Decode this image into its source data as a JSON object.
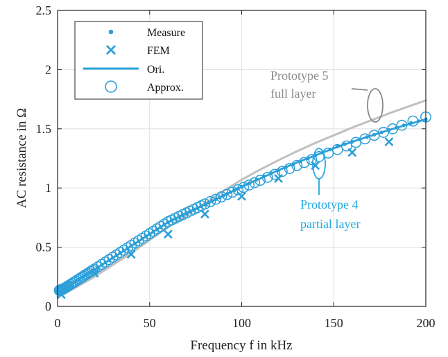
{
  "chart_data": {
    "type": "line",
    "xlabel": "Frequency f in kHz",
    "ylabel": "AC resistance in Ω",
    "xlim": [
      0,
      200
    ],
    "ylim": [
      0,
      2.5
    ],
    "xticks": [
      0,
      50,
      100,
      150,
      200
    ],
    "yticks": [
      0,
      0.5,
      1,
      1.5,
      2,
      2.5
    ],
    "xtick_labels": [
      "0",
      "50",
      "100",
      "150",
      "200"
    ],
    "ytick_labels": [
      "0",
      "0.5",
      "1",
      "1.5",
      "2",
      "2.5"
    ],
    "grid": true,
    "legend_position": "top-left",
    "legend": [
      {
        "label": "Measure",
        "marker": "dot"
      },
      {
        "label": "FEM",
        "marker": "x"
      },
      {
        "label": "Ori.",
        "marker": "line"
      },
      {
        "label": "Approx.",
        "marker": "circle"
      }
    ],
    "colors": {
      "blue": "#2b9fd8",
      "annot_blue": "#1ea9e0",
      "gray": "#c0c0c0",
      "annot_gray": "#8a8a8a",
      "grid": "#e3e3e3",
      "axis": "#222222"
    },
    "series": [
      {
        "name": "Measure",
        "kind": "points",
        "x": [
          2,
          4,
          6,
          8,
          10,
          12,
          14,
          16,
          18,
          20,
          22,
          24,
          26,
          28,
          30,
          32,
          34,
          36,
          38,
          40,
          42,
          44,
          46,
          48,
          50,
          52,
          54,
          56,
          58,
          60,
          62,
          64,
          66,
          68,
          70,
          72,
          74,
          76,
          78,
          80,
          82,
          84,
          86,
          88,
          90,
          92,
          94,
          96,
          98,
          100,
          104,
          108,
          112,
          116,
          120,
          124,
          128,
          132,
          136,
          140,
          144,
          148,
          152,
          156,
          160,
          164,
          168,
          172,
          176,
          180,
          184,
          188,
          192,
          196,
          200
        ],
        "y": [
          0.13,
          0.15,
          0.17,
          0.19,
          0.21,
          0.23,
          0.25,
          0.27,
          0.29,
          0.31,
          0.33,
          0.35,
          0.37,
          0.39,
          0.41,
          0.43,
          0.45,
          0.47,
          0.49,
          0.51,
          0.53,
          0.55,
          0.57,
          0.59,
          0.61,
          0.63,
          0.65,
          0.67,
          0.69,
          0.71,
          0.725,
          0.74,
          0.755,
          0.77,
          0.785,
          0.8,
          0.815,
          0.83,
          0.845,
          0.86,
          0.875,
          0.89,
          0.905,
          0.92,
          0.935,
          0.95,
          0.965,
          0.98,
          0.995,
          1.01,
          1.04,
          1.07,
          1.1,
          1.125,
          1.15,
          1.175,
          1.2,
          1.225,
          1.25,
          1.275,
          1.3,
          1.325,
          1.35,
          1.37,
          1.39,
          1.41,
          1.43,
          1.45,
          1.47,
          1.49,
          1.51,
          1.53,
          1.55,
          1.565,
          1.58
        ]
      },
      {
        "name": "FEM",
        "kind": "points",
        "x": [
          2,
          20,
          40,
          60,
          80,
          100,
          120,
          140,
          160,
          180
        ],
        "y": [
          0.1,
          0.28,
          0.44,
          0.61,
          0.78,
          0.93,
          1.08,
          1.19,
          1.3,
          1.39
        ]
      },
      {
        "name": "Ori.",
        "kind": "line",
        "x": [
          0,
          10,
          20,
          30,
          40,
          50,
          60,
          70,
          80,
          90,
          100,
          110,
          120,
          130,
          140,
          150,
          160,
          170,
          180,
          190,
          200
        ],
        "y": [
          0.12,
          0.21,
          0.31,
          0.41,
          0.51,
          0.61,
          0.71,
          0.79,
          0.86,
          0.935,
          1.01,
          1.08,
          1.15,
          1.215,
          1.275,
          1.335,
          1.39,
          1.44,
          1.49,
          1.535,
          1.58
        ]
      },
      {
        "name": "Approx.",
        "kind": "points",
        "x": [
          1.0,
          1.5,
          2.0,
          2.5,
          3.0,
          3.5,
          4.0,
          4.5,
          5.0,
          5.5,
          6.0,
          7.0,
          8.0,
          9.0,
          10.0,
          11.0,
          12.0,
          13.0,
          14.0,
          15.0,
          16.0,
          17.0,
          18.0,
          19.0,
          20.0,
          22.0,
          24.0,
          26.0,
          28.0,
          30.0,
          32.0,
          34.0,
          36.0,
          38.0,
          40.0,
          42.0,
          44.0,
          46.0,
          48.0,
          50.0,
          52.0,
          54.0,
          56.0,
          58.0,
          60.0,
          62.0,
          64.0,
          66.0,
          68.0,
          70.0,
          72.0,
          74.0,
          76.0,
          78.0,
          80.0,
          83.0,
          86.0,
          89.0,
          92.0,
          95.0,
          98.0,
          101.0,
          104.0,
          107.0,
          110.0,
          114.0,
          118.0,
          122.0,
          126.0,
          130.0,
          134.0,
          138.0,
          142.0,
          147.0,
          152.0,
          157.0,
          162.0,
          167.0,
          172.0,
          177.0,
          182.0,
          187.0,
          193.0,
          200.0
        ],
        "y": [
          0.135,
          0.14,
          0.14,
          0.145,
          0.145,
          0.15,
          0.155,
          0.16,
          0.165,
          0.17,
          0.175,
          0.185,
          0.195,
          0.205,
          0.215,
          0.225,
          0.235,
          0.245,
          0.255,
          0.265,
          0.275,
          0.285,
          0.295,
          0.305,
          0.315,
          0.335,
          0.355,
          0.375,
          0.395,
          0.415,
          0.435,
          0.455,
          0.475,
          0.495,
          0.515,
          0.535,
          0.555,
          0.575,
          0.595,
          0.615,
          0.635,
          0.655,
          0.675,
          0.695,
          0.715,
          0.73,
          0.745,
          0.76,
          0.775,
          0.79,
          0.805,
          0.82,
          0.835,
          0.85,
          0.865,
          0.885,
          0.905,
          0.925,
          0.945,
          0.965,
          0.985,
          1.005,
          1.025,
          1.045,
          1.065,
          1.09,
          1.115,
          1.14,
          1.165,
          1.19,
          1.215,
          1.24,
          1.265,
          1.295,
          1.325,
          1.355,
          1.385,
          1.415,
          1.445,
          1.47,
          1.5,
          1.53,
          1.565,
          1.6
        ]
      },
      {
        "kind": "line",
        "x": [
          0,
          10,
          20,
          30,
          40,
          50,
          60,
          70,
          80,
          90,
          100,
          110,
          120,
          130,
          140,
          150,
          160,
          170,
          180,
          190,
          200
        ],
        "y": [
          0.08,
          0.16,
          0.25,
          0.35,
          0.45,
          0.56,
          0.67,
          0.77,
          0.87,
          0.975,
          1.07,
          1.155,
          1.235,
          1.31,
          1.38,
          1.445,
          1.51,
          1.57,
          1.63,
          1.685,
          1.74
        ]
      }
    ],
    "annotations": [
      {
        "lines": [
          "Prototype 5",
          "full layer"
        ],
        "color": "gray"
      },
      {
        "lines": [
          "Prototype 4",
          "partial layer"
        ],
        "color": "blue"
      }
    ]
  }
}
